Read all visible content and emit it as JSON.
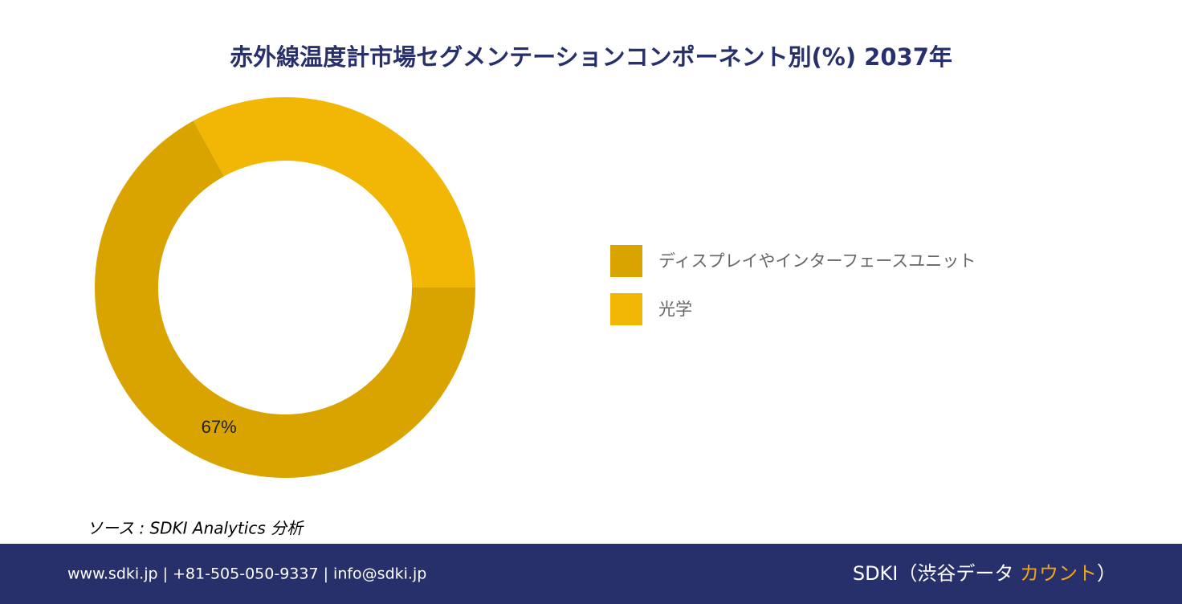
{
  "chart_data": {
    "type": "donut",
    "title": "赤外線温度計市場セグメンテーションコンポーネント別(%) 2037年",
    "categories": [
      "ディスプレイやインターフェースユニット",
      "光学"
    ],
    "values": [
      67,
      33
    ],
    "value_labels": [
      "67%",
      null
    ],
    "colors": [
      "#D9A300",
      "#F2B705"
    ]
  },
  "source": "ソース : SDKI Analytics 分析",
  "footer": {
    "contact": "www.sdki.jp | +81-505-050-9337 | info@sdki.jp",
    "brand_start": "SDKI（渋谷データ ",
    "brand_highlight": "カウント",
    "brand_end": "）"
  }
}
